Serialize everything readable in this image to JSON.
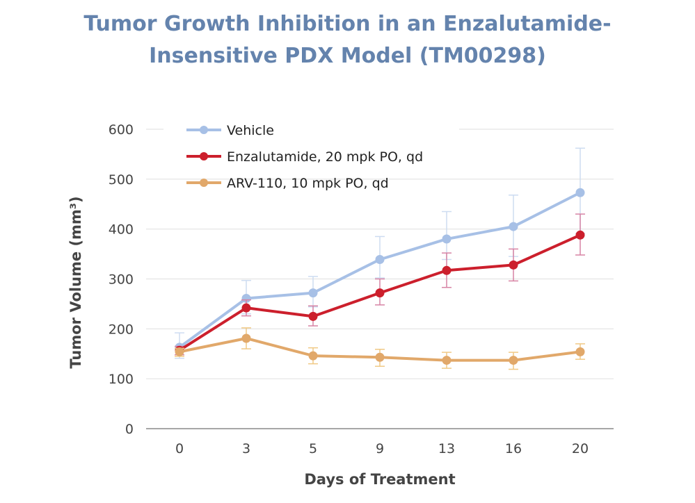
{
  "chart_data": {
    "type": "line",
    "title_line1": "Tumor Growth Inhibition in an Enzalutamide-",
    "title_line2": "Insensitive PDX Model (TM00298)",
    "xlabel": "Days of Treatment",
    "ylabel": "Tumor Volume (mm³)",
    "categories": [
      "0",
      "3",
      "5",
      "9",
      "13",
      "16",
      "20"
    ],
    "ylim": [
      0,
      600
    ],
    "yticks": [
      "0",
      "100",
      "200",
      "300",
      "400",
      "500",
      "600"
    ],
    "grid": true,
    "legend_position": "top-left",
    "series": [
      {
        "name": "Vehicle",
        "color": "#a7c0e6",
        "error_color": "#cddcf1",
        "values": [
          163,
          261,
          272,
          339,
          380,
          405,
          473
        ],
        "upper": [
          192,
          297,
          305,
          385,
          435,
          468,
          562
        ],
        "lower": [
          141,
          230,
          244,
          302,
          339,
          345,
          391
        ]
      },
      {
        "name": "Enzalutamide, 20 mpk PO, qd",
        "color": "#cc1f2c",
        "error_color": "#d783a4",
        "values": [
          157,
          242,
          225,
          272,
          317,
          328,
          388
        ],
        "upper": [
          165,
          258,
          246,
          300,
          352,
          360,
          430
        ],
        "lower": [
          148,
          226,
          206,
          248,
          283,
          296,
          348
        ]
      },
      {
        "name": "ARV-110, 10 mpk PO, qd",
        "color": "#e1a86a",
        "error_color": "#f0c985",
        "values": [
          154,
          181,
          146,
          143,
          137,
          137,
          154
        ],
        "upper": [
          161,
          202,
          162,
          159,
          153,
          153,
          170
        ],
        "lower": [
          145,
          160,
          130,
          125,
          121,
          119,
          139
        ]
      }
    ]
  }
}
